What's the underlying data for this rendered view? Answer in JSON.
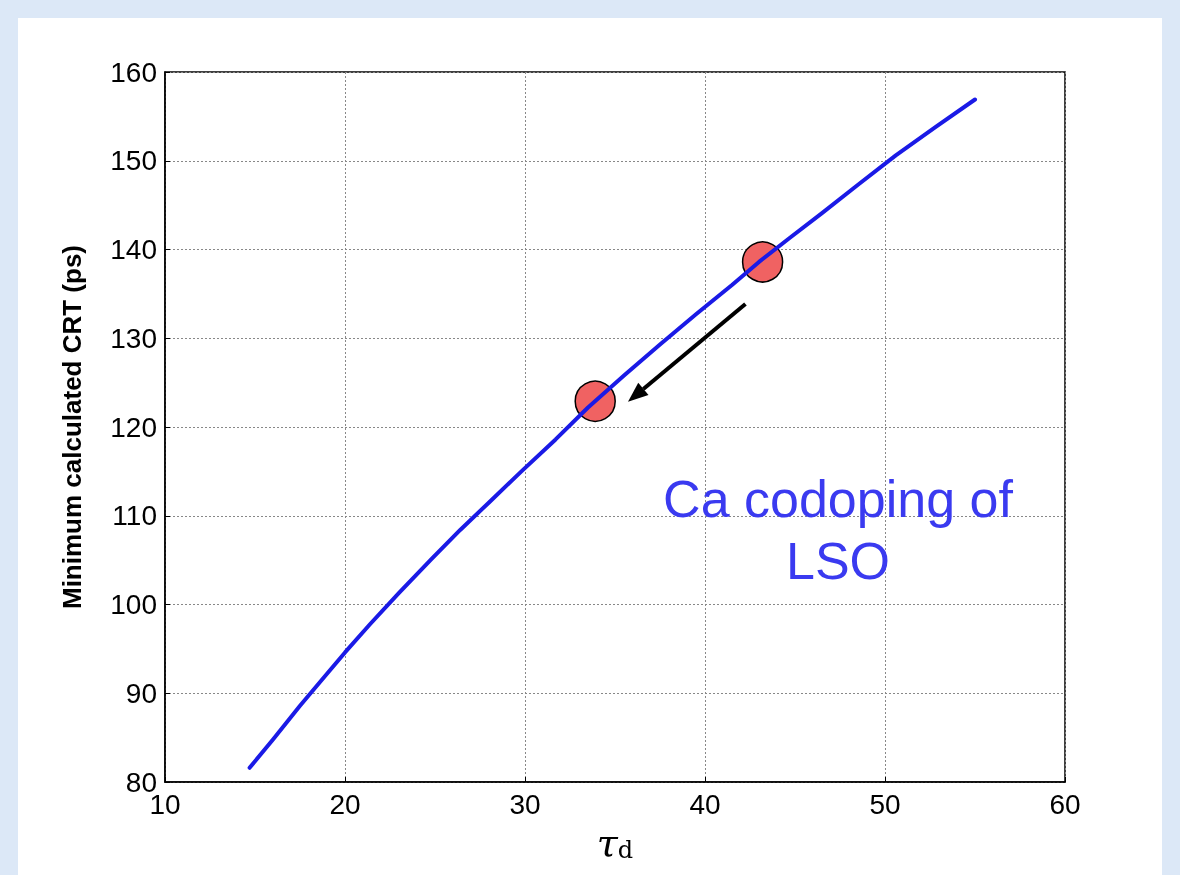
{
  "chart_data": {
    "type": "line",
    "xlabel": "τ$_{d}$",
    "ylabel": "Minimum calculated CRT (ps)",
    "xlim": [
      10,
      60
    ],
    "xticks": [
      10,
      20,
      30,
      40,
      50,
      60
    ],
    "ylim": [
      80,
      160
    ],
    "yticks": [
      80,
      90,
      100,
      110,
      120,
      130,
      140,
      150,
      160
    ],
    "grid": true,
    "marker": "none",
    "line_style": "solid",
    "series": [
      {
        "color": "#1a1ae6",
        "x": [
          14.7,
          16,
          17.5,
          19,
          20,
          21.4,
          23,
          24.8,
          26.4,
          28,
          29.8,
          31.7,
          33.5,
          35.5,
          37.5,
          39.5,
          41.5,
          43,
          44.7,
          46.5,
          48.5,
          50.6,
          52.8,
          55
        ],
        "values": [
          81.6,
          84.8,
          88.6,
          92.2,
          94.6,
          97.8,
          101.3,
          105.1,
          108.4,
          111.5,
          115,
          118.6,
          122.2,
          125.8,
          129.3,
          132.7,
          136,
          138.6,
          141.3,
          144.1,
          147.3,
          150.6,
          153.8,
          156.9
        ]
      },
      {
        "type": "scatter",
        "marker": "circle",
        "color": "#f06262",
        "x": [
          33.9,
          43.2
        ],
        "values": [
          122.9,
          138.6
        ]
      }
    ],
    "annotations": [
      "Ca codoping of LSO"
    ]
  }
}
